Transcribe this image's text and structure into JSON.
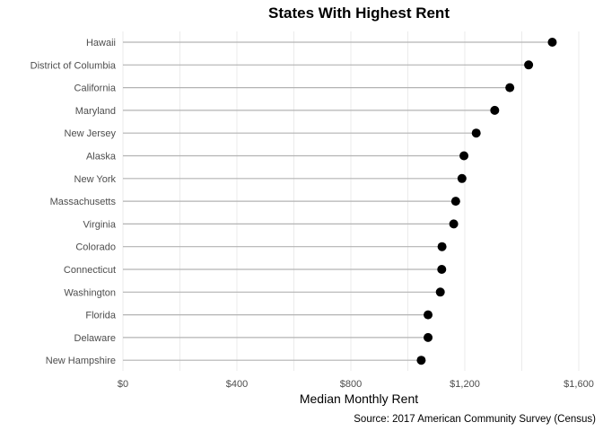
{
  "chart_data": {
    "type": "lollipop",
    "title": "States With Highest Rent",
    "xlabel": "Median Monthly Rent",
    "ylabel": "",
    "caption": "Source: 2017 American Community Survey (Census)",
    "xlim": [
      0,
      1600
    ],
    "x_ticks": [
      0,
      400,
      800,
      1200,
      1600
    ],
    "x_tick_labels": [
      "$0",
      "$400",
      "$800",
      "$1,200",
      "$1,600"
    ],
    "grid": true,
    "categories": [
      "Hawaii",
      "District of Columbia",
      "California",
      "Maryland",
      "New Jersey",
      "Alaska",
      "New York",
      "Massachusetts",
      "Virginia",
      "Colorado",
      "Connecticut",
      "Washington",
      "Florida",
      "Delaware",
      "New Hampshire"
    ],
    "values": [
      1507,
      1424,
      1358,
      1305,
      1240,
      1197,
      1190,
      1168,
      1161,
      1120,
      1119,
      1114,
      1071,
      1071,
      1047
    ],
    "point_color": "#000000",
    "stem_color": "#b3b3b3"
  }
}
